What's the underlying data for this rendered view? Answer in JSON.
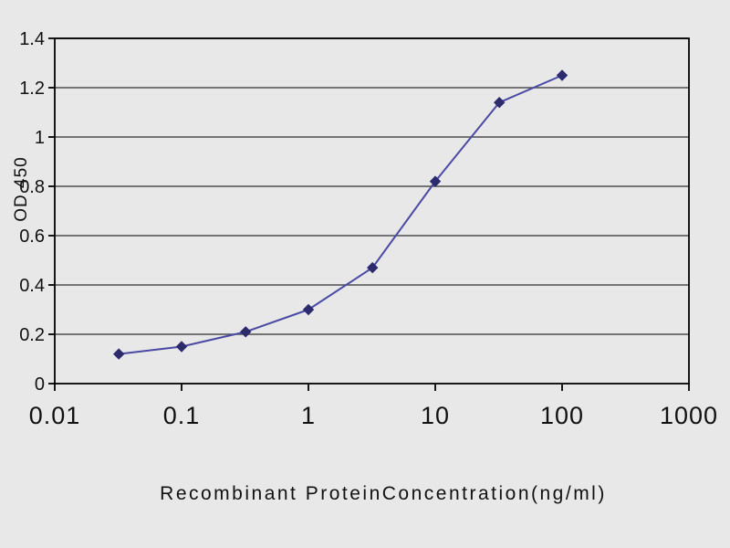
{
  "figure": {
    "kind": "ELISA standard curve line chart",
    "background_color": "#e8e8e8"
  },
  "chart_data": {
    "type": "line",
    "title": "",
    "xlabel": "Recombinant ProteinConcentration(ng/ml)",
    "ylabel": "OD 450",
    "x_scale": "log10",
    "xlim": [
      0.01,
      1000
    ],
    "ylim": [
      0,
      1.4
    ],
    "x_ticks": [
      0.01,
      0.1,
      1,
      10,
      100,
      1000
    ],
    "x_tick_labels": [
      "0.01",
      "0.1",
      "1",
      "10",
      "100",
      "1000"
    ],
    "y_ticks": [
      0,
      0.2,
      0.4,
      0.6,
      0.8,
      1,
      1.2,
      1.4
    ],
    "y_tick_labels": [
      "0",
      "0.2",
      "0.4",
      "0.6",
      "0.8",
      "1",
      "1.2",
      "1.4"
    ],
    "grid": "horizontal",
    "legend_position": "none",
    "series": [
      {
        "name": "OD 450 vs concentration",
        "x": [
          0.032,
          0.1,
          0.32,
          1,
          3.2,
          10,
          32,
          100
        ],
        "y": [
          0.12,
          0.15,
          0.21,
          0.3,
          0.47,
          0.82,
          1.14,
          1.25
        ],
        "marker": "diamond"
      }
    ],
    "colors": {
      "line": "#4a4aa5",
      "marker": "#2b2b6e",
      "grid": "#4d4d4d",
      "axis": "#000000",
      "tick_text": "#111111"
    }
  }
}
